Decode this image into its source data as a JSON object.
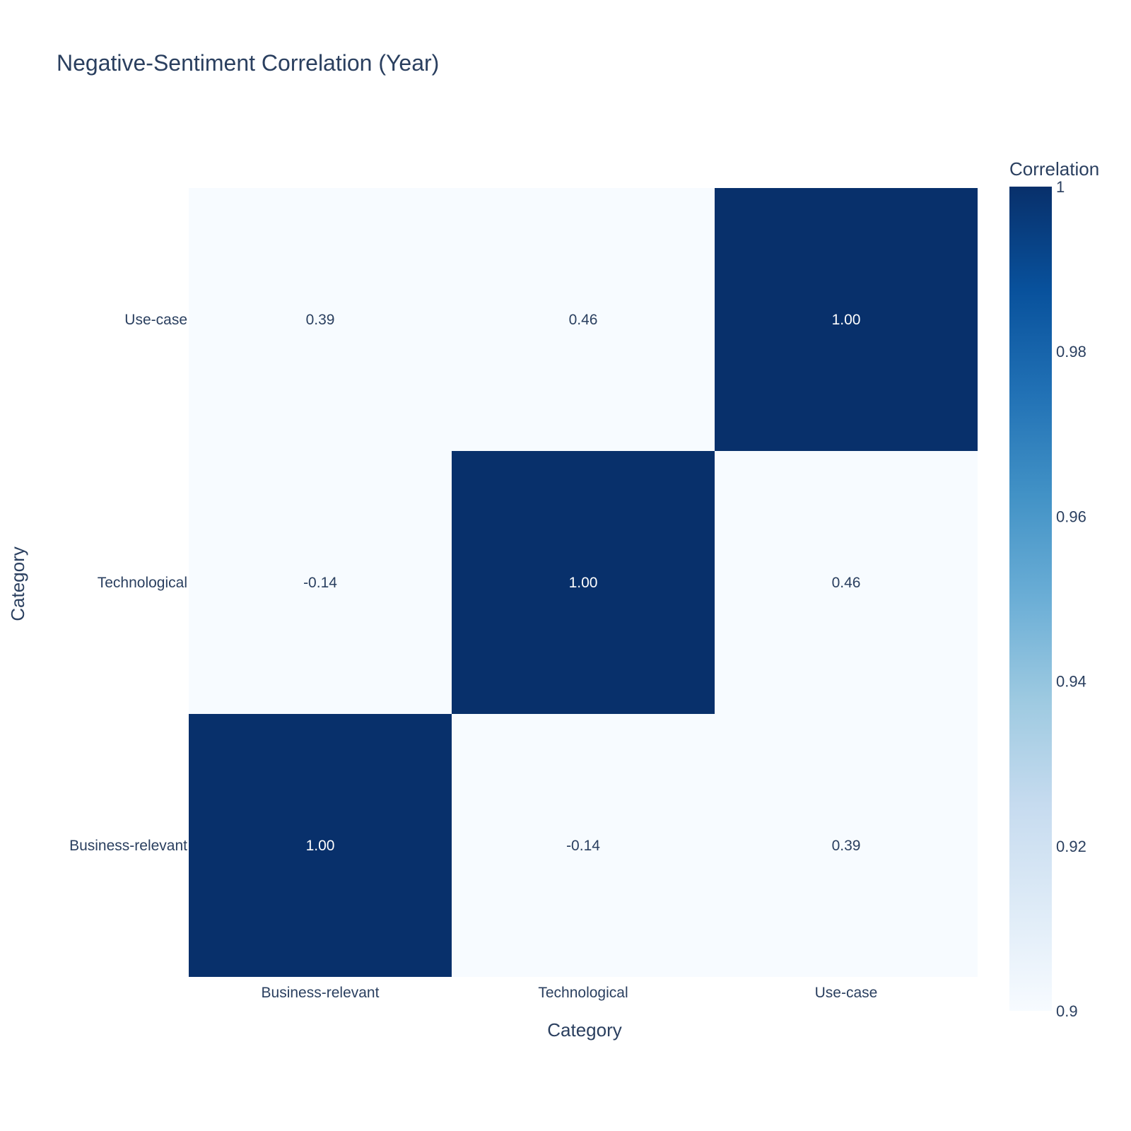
{
  "chart_data": {
    "type": "heatmap",
    "title": "Negative-Sentiment Correlation (Year)",
    "xlabel": "Category",
    "ylabel": "Category",
    "x_categories": [
      "Business-relevant",
      "Technological",
      "Use-case"
    ],
    "y_categories": [
      "Business-relevant",
      "Technological",
      "Use-case"
    ],
    "z": [
      [
        1.0,
        -0.14,
        0.39
      ],
      [
        -0.14,
        1.0,
        0.46
      ],
      [
        0.39,
        0.46,
        1.0
      ]
    ],
    "cell_labels": [
      [
        "1.00",
        "-0.14",
        "0.39"
      ],
      [
        "-0.14",
        "1.00",
        "0.46"
      ],
      [
        "0.39",
        "0.46",
        "1.00"
      ]
    ],
    "colorscale": "Blues",
    "colorbar": {
      "title": "Correlation",
      "range": [
        0.9,
        1
      ],
      "tick_values": [
        0.9,
        0.92,
        0.94,
        0.96,
        0.98,
        1
      ],
      "tick_labels": [
        "0.9",
        "0.92",
        "0.94",
        "0.96",
        "0.98",
        "1"
      ]
    },
    "colors": {
      "low": "#f7fbff",
      "high": "#08306b",
      "text_dark": "#2a3f5f"
    }
  }
}
